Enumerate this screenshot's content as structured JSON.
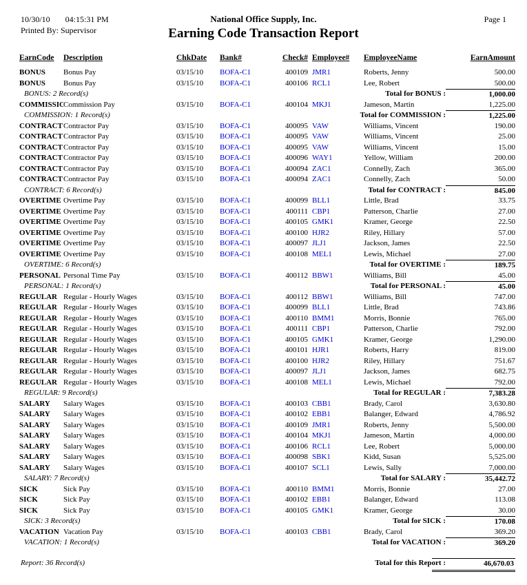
{
  "header": {
    "date": "10/30/10",
    "time": "04:15:31 PM",
    "printed_by": "Printed By: Supervisor",
    "company": "National Office Supply, Inc.",
    "title": "Earning Code Transaction Report",
    "page": "Page 1"
  },
  "columns": [
    "EarnCode",
    "Description",
    "ChkDate",
    "Bank#",
    "Check#",
    "Employee#",
    "EmployeeName",
    "EarnAmount"
  ],
  "colors": {
    "link": "#0000cc"
  },
  "sections": [
    {
      "code": "BONUS",
      "rows": [
        {
          "earn_code": "BONUS",
          "description": "Bonus Pay",
          "chk_date": "03/15/10",
          "bank": "BOFA-C1",
          "check_no": "400109",
          "employee_no": "JMR1",
          "employee_name": "Roberts, Jenny",
          "amount": "500.00"
        },
        {
          "earn_code": "BONUS",
          "description": "Bonus Pay",
          "chk_date": "03/15/10",
          "bank": "BOFA-C1",
          "check_no": "400106",
          "employee_no": "RCL1",
          "employee_name": "Lee, Robert",
          "amount": "500.00"
        }
      ],
      "record_count": "BONUS: 2 Record(s)",
      "total_label": "Total for BONUS :",
      "total_amount": "1,000.00"
    },
    {
      "code": "COMMISSION",
      "rows": [
        {
          "earn_code": "COMMISSION",
          "description": "Commission Pay",
          "chk_date": "03/15/10",
          "bank": "BOFA-C1",
          "check_no": "400104",
          "employee_no": "MKJ1",
          "employee_name": "Jameson, Martin",
          "amount": "1,225.00"
        }
      ],
      "record_count": "COMMISSION: 1 Record(s)",
      "total_label": "Total for COMMISSION :",
      "total_amount": "1,225.00"
    },
    {
      "code": "CONTRACT",
      "rows": [
        {
          "earn_code": "CONTRACT",
          "description": "Contractor Pay",
          "chk_date": "03/15/10",
          "bank": "BOFA-C1",
          "check_no": "400095",
          "employee_no": "VAW",
          "employee_name": "Williams, Vincent",
          "amount": "190.00"
        },
        {
          "earn_code": "CONTRACT",
          "description": "Contractor Pay",
          "chk_date": "03/15/10",
          "bank": "BOFA-C1",
          "check_no": "400095",
          "employee_no": "VAW",
          "employee_name": "Williams, Vincent",
          "amount": "25.00"
        },
        {
          "earn_code": "CONTRACT",
          "description": "Contractor Pay",
          "chk_date": "03/15/10",
          "bank": "BOFA-C1",
          "check_no": "400095",
          "employee_no": "VAW",
          "employee_name": "Williams, Vincent",
          "amount": "15.00"
        },
        {
          "earn_code": "CONTRACT",
          "description": "Contractor Pay",
          "chk_date": "03/15/10",
          "bank": "BOFA-C1",
          "check_no": "400096",
          "employee_no": "WAY1",
          "employee_name": "Yellow, William",
          "amount": "200.00"
        },
        {
          "earn_code": "CONTRACT",
          "description": "Contractor Pay",
          "chk_date": "03/15/10",
          "bank": "BOFA-C1",
          "check_no": "400094",
          "employee_no": "ZAC1",
          "employee_name": "Connelly, Zach",
          "amount": "365.00"
        },
        {
          "earn_code": "CONTRACT",
          "description": "Contractor Pay",
          "chk_date": "03/15/10",
          "bank": "BOFA-C1",
          "check_no": "400094",
          "employee_no": "ZAC1",
          "employee_name": "Connelly, Zach",
          "amount": "50.00"
        }
      ],
      "record_count": "CONTRACT: 6 Record(s)",
      "total_label": "Total for CONTRACT :",
      "total_amount": "845.00"
    },
    {
      "code": "OVERTIME",
      "rows": [
        {
          "earn_code": "OVERTIME",
          "description": "Overtime Pay",
          "chk_date": "03/15/10",
          "bank": "BOFA-C1",
          "check_no": "400099",
          "employee_no": "BLL1",
          "employee_name": "Little, Brad",
          "amount": "33.75"
        },
        {
          "earn_code": "OVERTIME",
          "description": "Overtime Pay",
          "chk_date": "03/15/10",
          "bank": "BOFA-C1",
          "check_no": "400111",
          "employee_no": "CBP1",
          "employee_name": "Patterson, Charlie",
          "amount": "27.00"
        },
        {
          "earn_code": "OVERTIME",
          "description": "Overtime Pay",
          "chk_date": "03/15/10",
          "bank": "BOFA-C1",
          "check_no": "400105",
          "employee_no": "GMK1",
          "employee_name": "Kramer, George",
          "amount": "22.50"
        },
        {
          "earn_code": "OVERTIME",
          "description": "Overtime Pay",
          "chk_date": "03/15/10",
          "bank": "BOFA-C1",
          "check_no": "400100",
          "employee_no": "HJR2",
          "employee_name": "Riley, Hillary",
          "amount": "57.00"
        },
        {
          "earn_code": "OVERTIME",
          "description": "Overtime Pay",
          "chk_date": "03/15/10",
          "bank": "BOFA-C1",
          "check_no": "400097",
          "employee_no": "JLJ1",
          "employee_name": "Jackson, James",
          "amount": "22.50"
        },
        {
          "earn_code": "OVERTIME",
          "description": "Overtime Pay",
          "chk_date": "03/15/10",
          "bank": "BOFA-C1",
          "check_no": "400108",
          "employee_no": "MEL1",
          "employee_name": "Lewis, Michael",
          "amount": "27.00"
        }
      ],
      "record_count": "OVERTIME: 6 Record(s)",
      "total_label": "Total for OVERTIME :",
      "total_amount": "189.75"
    },
    {
      "code": "PERSONAL",
      "rows": [
        {
          "earn_code": "PERSONAL",
          "description": "Personal Time Pay",
          "chk_date": "03/15/10",
          "bank": "BOFA-C1",
          "check_no": "400112",
          "employee_no": "BBW1",
          "employee_name": "Williams, Bill",
          "amount": "45.00"
        }
      ],
      "record_count": "PERSONAL: 1 Record(s)",
      "total_label": "Total for PERSONAL :",
      "total_amount": "45.00"
    },
    {
      "code": "REGULAR",
      "rows": [
        {
          "earn_code": "REGULAR",
          "description": "Regular - Hourly Wages",
          "chk_date": "03/15/10",
          "bank": "BOFA-C1",
          "check_no": "400112",
          "employee_no": "BBW1",
          "employee_name": "Williams, Bill",
          "amount": "747.00"
        },
        {
          "earn_code": "REGULAR",
          "description": "Regular - Hourly Wages",
          "chk_date": "03/15/10",
          "bank": "BOFA-C1",
          "check_no": "400099",
          "employee_no": "BLL1",
          "employee_name": "Little, Brad",
          "amount": "743.86"
        },
        {
          "earn_code": "REGULAR",
          "description": "Regular - Hourly Wages",
          "chk_date": "03/15/10",
          "bank": "BOFA-C1",
          "check_no": "400110",
          "employee_no": "BMM1",
          "employee_name": "Morris, Bonnie",
          "amount": "765.00"
        },
        {
          "earn_code": "REGULAR",
          "description": "Regular - Hourly Wages",
          "chk_date": "03/15/10",
          "bank": "BOFA-C1",
          "check_no": "400111",
          "employee_no": "CBP1",
          "employee_name": "Patterson, Charlie",
          "amount": "792.00"
        },
        {
          "earn_code": "REGULAR",
          "description": "Regular - Hourly Wages",
          "chk_date": "03/15/10",
          "bank": "BOFA-C1",
          "check_no": "400105",
          "employee_no": "GMK1",
          "employee_name": "Kramer, George",
          "amount": "1,290.00"
        },
        {
          "earn_code": "REGULAR",
          "description": "Regular - Hourly Wages",
          "chk_date": "03/15/10",
          "bank": "BOFA-C1",
          "check_no": "400101",
          "employee_no": "HJR1",
          "employee_name": "Roberts, Harry",
          "amount": "819.00"
        },
        {
          "earn_code": "REGULAR",
          "description": "Regular - Hourly Wages",
          "chk_date": "03/15/10",
          "bank": "BOFA-C1",
          "check_no": "400100",
          "employee_no": "HJR2",
          "employee_name": "Riley, Hillary",
          "amount": "751.67"
        },
        {
          "earn_code": "REGULAR",
          "description": "Regular - Hourly Wages",
          "chk_date": "03/15/10",
          "bank": "BOFA-C1",
          "check_no": "400097",
          "employee_no": "JLJ1",
          "employee_name": "Jackson, James",
          "amount": "682.75"
        },
        {
          "earn_code": "REGULAR",
          "description": "Regular - Hourly Wages",
          "chk_date": "03/15/10",
          "bank": "BOFA-C1",
          "check_no": "400108",
          "employee_no": "MEL1",
          "employee_name": "Lewis, Michael",
          "amount": "792.00"
        }
      ],
      "record_count": "REGULAR: 9 Record(s)",
      "total_label": "Total for REGULAR :",
      "total_amount": "7,383.28"
    },
    {
      "code": "SALARY",
      "rows": [
        {
          "earn_code": "SALARY",
          "description": "Salary Wages",
          "chk_date": "03/15/10",
          "bank": "BOFA-C1",
          "check_no": "400103",
          "employee_no": "CBB1",
          "employee_name": "Brady, Carol",
          "amount": "3,630.80"
        },
        {
          "earn_code": "SALARY",
          "description": "Salary Wages",
          "chk_date": "03/15/10",
          "bank": "BOFA-C1",
          "check_no": "400102",
          "employee_no": "EBB1",
          "employee_name": "Balanger, Edward",
          "amount": "4,786.92"
        },
        {
          "earn_code": "SALARY",
          "description": "Salary Wages",
          "chk_date": "03/15/10",
          "bank": "BOFA-C1",
          "check_no": "400109",
          "employee_no": "JMR1",
          "employee_name": "Roberts, Jenny",
          "amount": "5,500.00"
        },
        {
          "earn_code": "SALARY",
          "description": "Salary Wages",
          "chk_date": "03/15/10",
          "bank": "BOFA-C1",
          "check_no": "400104",
          "employee_no": "MKJ1",
          "employee_name": "Jameson, Martin",
          "amount": "4,000.00"
        },
        {
          "earn_code": "SALARY",
          "description": "Salary Wages",
          "chk_date": "03/15/10",
          "bank": "BOFA-C1",
          "check_no": "400106",
          "employee_no": "RCL1",
          "employee_name": "Lee, Robert",
          "amount": "5,000.00"
        },
        {
          "earn_code": "SALARY",
          "description": "Salary Wages",
          "chk_date": "03/15/10",
          "bank": "BOFA-C1",
          "check_no": "400098",
          "employee_no": "SBK1",
          "employee_name": "Kidd, Susan",
          "amount": "5,525.00"
        },
        {
          "earn_code": "SALARY",
          "description": "Salary Wages",
          "chk_date": "03/15/10",
          "bank": "BOFA-C1",
          "check_no": "400107",
          "employee_no": "SCL1",
          "employee_name": "Lewis, Sally",
          "amount": "7,000.00"
        }
      ],
      "record_count": "SALARY: 7 Record(s)",
      "total_label": "Total for SALARY :",
      "total_amount": "35,442.72"
    },
    {
      "code": "SICK",
      "rows": [
        {
          "earn_code": "SICK",
          "description": "Sick Pay",
          "chk_date": "03/15/10",
          "bank": "BOFA-C1",
          "check_no": "400110",
          "employee_no": "BMM1",
          "employee_name": "Morris, Bonnie",
          "amount": "27.00"
        },
        {
          "earn_code": "SICK",
          "description": "Sick Pay",
          "chk_date": "03/15/10",
          "bank": "BOFA-C1",
          "check_no": "400102",
          "employee_no": "EBB1",
          "employee_name": "Balanger, Edward",
          "amount": "113.08"
        },
        {
          "earn_code": "SICK",
          "description": "Sick Pay",
          "chk_date": "03/15/10",
          "bank": "BOFA-C1",
          "check_no": "400105",
          "employee_no": "GMK1",
          "employee_name": "Kramer, George",
          "amount": "30.00"
        }
      ],
      "record_count": "SICK: 3 Record(s)",
      "total_label": "Total for SICK :",
      "total_amount": "170.08"
    },
    {
      "code": "VACATION",
      "rows": [
        {
          "earn_code": "VACATION",
          "description": "Vacation Pay",
          "chk_date": "03/15/10",
          "bank": "BOFA-C1",
          "check_no": "400103",
          "employee_no": "CBB1",
          "employee_name": "Brady, Carol",
          "amount": "369.20"
        }
      ],
      "record_count": "VACATION: 1 Record(s)",
      "total_label": "Total for VACATION :",
      "total_amount": "369.20"
    }
  ],
  "footer": {
    "record_count": "Report: 36 Record(s)",
    "total_label": "Total for this Report :",
    "total_amount": "46,670.03"
  }
}
